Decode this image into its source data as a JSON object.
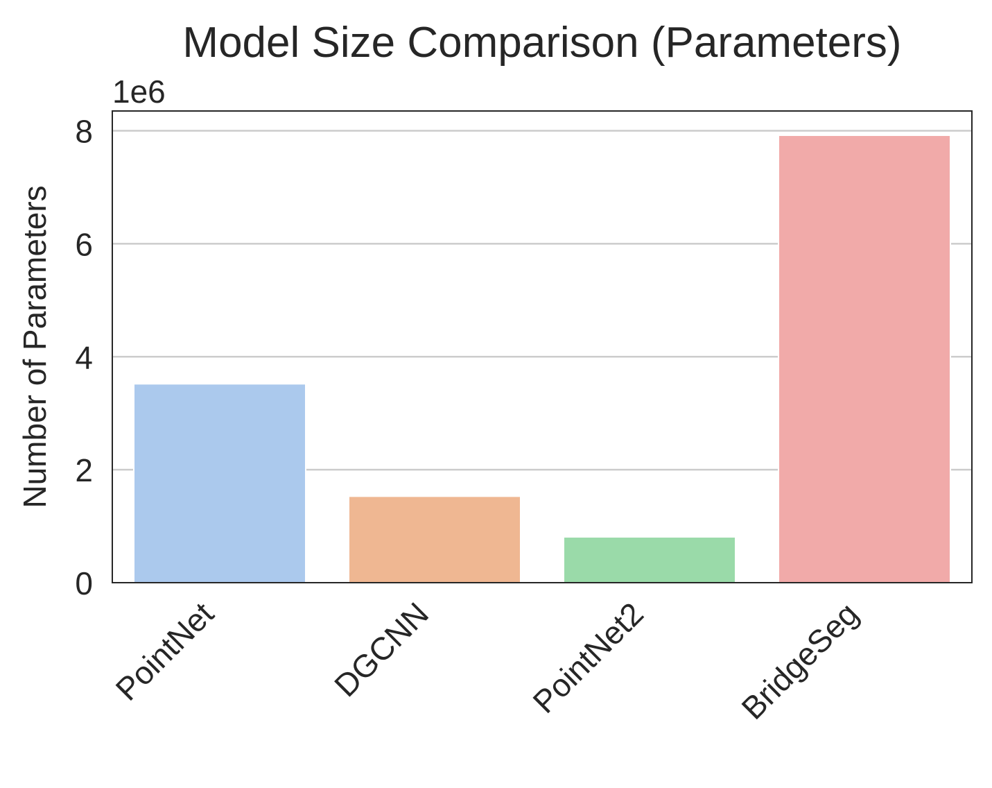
{
  "chart_data": {
    "type": "bar",
    "title": "Model Size Comparison (Parameters)",
    "xlabel": "",
    "ylabel": "Number of Parameters",
    "offset_label": "1e6",
    "categories": [
      "PointNet",
      "DGCNN",
      "PointNet2",
      "BridgeSeg"
    ],
    "values": [
      3520000,
      1530000,
      810000,
      7920000
    ],
    "colors": [
      "#abc9ed",
      "#efb792",
      "#9adaa9",
      "#f1aaa9"
    ],
    "ylim": [
      0,
      8350000
    ],
    "yticks": [
      0,
      2000000,
      4000000,
      6000000,
      8000000
    ],
    "ytick_labels": [
      "0",
      "2",
      "4",
      "6",
      "8"
    ],
    "grid": "y",
    "legend": "none"
  }
}
